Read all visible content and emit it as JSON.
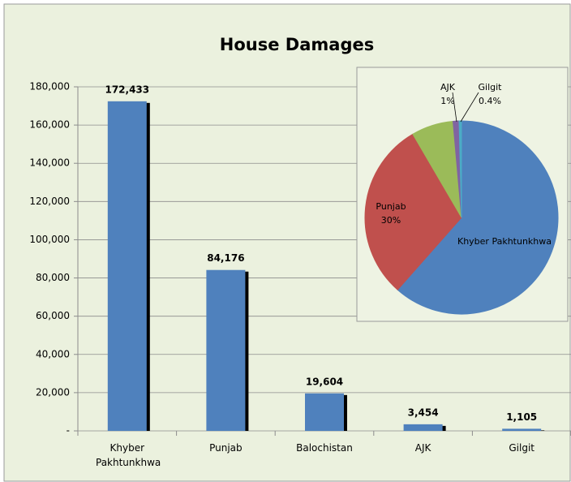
{
  "chart_data": [
    {
      "type": "bar",
      "title": "House Damages",
      "categories": [
        "Khyber Pakhtunkhwa",
        "Punjab",
        "Balochistan",
        "AJK",
        "Gilgit"
      ],
      "values": [
        172433,
        84176,
        19604,
        3454,
        1105
      ],
      "value_labels": [
        "172,433",
        "84,176",
        "19,604",
        "3,454",
        "1,105"
      ],
      "color": "#4f81bd",
      "ylim": [
        0,
        180000
      ],
      "yticks": [
        {
          "value": 0,
          "label": "-"
        },
        {
          "value": 20000,
          "label": "20,000"
        },
        {
          "value": 40000,
          "label": "40,000"
        },
        {
          "value": 60000,
          "label": "60,000"
        },
        {
          "value": 80000,
          "label": "80,000"
        },
        {
          "value": 100000,
          "label": "100,000"
        },
        {
          "value": 120000,
          "label": "120,000"
        },
        {
          "value": 140000,
          "label": "140,000"
        },
        {
          "value": 160000,
          "label": "160,000"
        },
        {
          "value": 180000,
          "label": "180,000"
        }
      ],
      "grid": true
    },
    {
      "type": "pie",
      "categories": [
        "Khyber Pakhtunkhwa",
        "Punjab",
        null,
        "AJK",
        "Gilgit"
      ],
      "values": [
        61.4,
        30,
        7,
        1,
        0.4
      ],
      "value_labels": [
        null,
        "30%",
        null,
        "1%",
        "0.4%"
      ],
      "colors": [
        "#4f81bd",
        "#c0504d",
        "#9bbb59",
        "#8064a2",
        "#4bacc6"
      ]
    }
  ]
}
